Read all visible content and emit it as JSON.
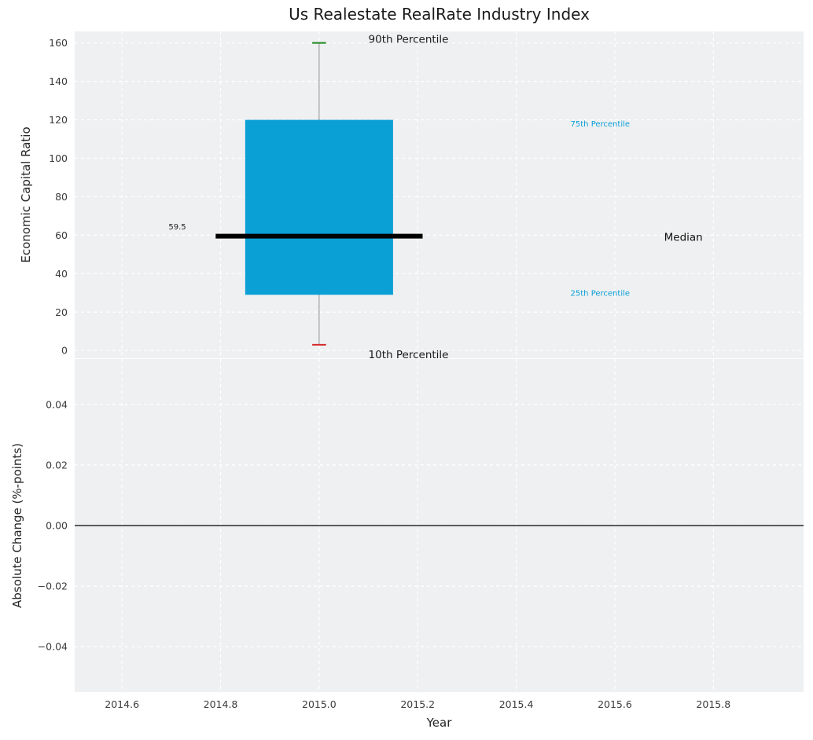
{
  "chart_data": {
    "type": "boxplot",
    "title": "Us Realestate RealRate Industry Index",
    "x_axis": {
      "label": "Year",
      "lim": [
        2014.504,
        2015.983
      ],
      "ticks": [
        2014.6,
        2014.8,
        2015.0,
        2015.2,
        2015.4,
        2015.6,
        2015.8
      ],
      "tick_labels": [
        "2014.6",
        "2014.8",
        "2015.0",
        "2015.2",
        "2015.4",
        "2015.6",
        "2015.8"
      ]
    },
    "top_subplot": {
      "ylabel": "Economic Capital Ratio",
      "ylim": [
        -4,
        166
      ],
      "ticks": [
        0,
        20,
        40,
        60,
        80,
        100,
        120,
        140,
        160
      ],
      "tick_labels": [
        "0",
        "20",
        "40",
        "60",
        "80",
        "100",
        "120",
        "140",
        "160"
      ],
      "box": {
        "x": 2015.0,
        "p10": 3,
        "p25": 29,
        "median": 59.5,
        "p75": 120,
        "p90": 160,
        "box_width": 0.3,
        "median_width": 0.42,
        "cap_width": 0.028,
        "box_color": "#0a9fd5",
        "median_color": "#000000",
        "whisker_color": "#909090",
        "p90_cap_color": "#1f8a1f",
        "p10_cap_color": "#d42a2a"
      },
      "annotations": [
        {
          "text": "90th Percentile",
          "x": 2015.1,
          "y": 162,
          "color": "#1a1a1a",
          "size": 13.5,
          "anchor": "start"
        },
        {
          "text": "10th Percentile",
          "x": 2015.1,
          "y": -2,
          "color": "#1a1a1a",
          "size": 13.5,
          "anchor": "start"
        },
        {
          "text": "75th Percentile",
          "x": 2015.51,
          "y": 118,
          "color": "#0a9ed9",
          "size": 10,
          "anchor": "start"
        },
        {
          "text": "25th Percentile",
          "x": 2015.51,
          "y": 30,
          "color": "#0a9ed9",
          "size": 10,
          "anchor": "start"
        },
        {
          "text": "Median",
          "x": 2015.7,
          "y": 59,
          "color": "#111111",
          "size": 13.5,
          "anchor": "start"
        },
        {
          "text": "59.5",
          "x": 2014.73,
          "y": 64.5,
          "color": "#222222",
          "size": 10,
          "anchor": "end"
        }
      ]
    },
    "bottom_subplot": {
      "ylabel": "Absolute Change (%-points)",
      "ylim": [
        -0.055,
        0.055
      ],
      "ticks": [
        -0.04,
        -0.02,
        0,
        0.02,
        0.04
      ],
      "tick_labels": [
        "−0.04",
        "−0.02",
        "0.00",
        "0.02",
        "0.04"
      ],
      "zero_line": 0
    },
    "style": {
      "axes_bg": "#eff0f1",
      "grid_color": "#ffffff",
      "tick_color": "#3b3b3b",
      "zero_line_color": "#000000",
      "title_color": "#1a1a1a"
    }
  }
}
